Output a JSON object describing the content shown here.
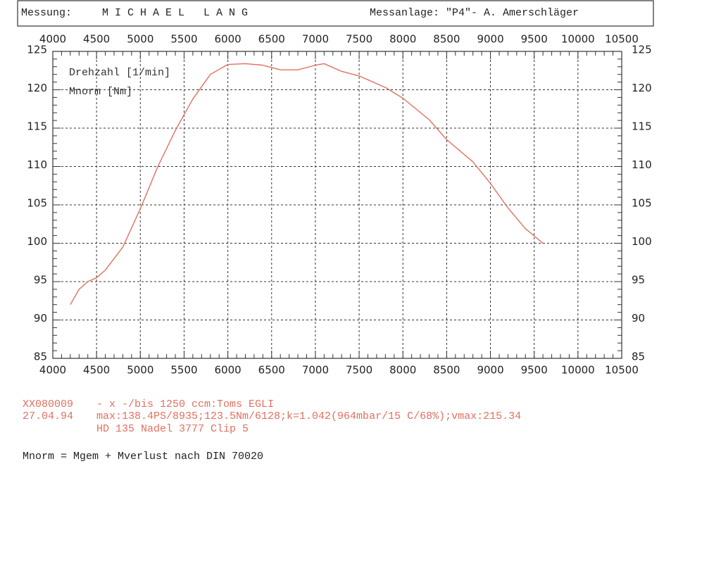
{
  "header": {
    "left_label": "Messung:",
    "name": "M I C H A E L   L A N G",
    "right_label": "Messanlage: \"P4\"- A. Amerschläger"
  },
  "chart_data": {
    "type": "line",
    "x_label": "Drehzahl [1/min]",
    "y_label": "Mnorm [Nm]",
    "x": [
      4200,
      4300,
      4400,
      4500,
      4600,
      4800,
      5000,
      5200,
      5400,
      5600,
      5800,
      6000,
      6200,
      6400,
      6600,
      6800,
      7000,
      7100,
      7300,
      7500,
      7800,
      8000,
      8300,
      8500,
      8800,
      9000,
      9200,
      9400,
      9600
    ],
    "values": [
      92,
      94,
      95,
      95.5,
      96.5,
      99.5,
      104.5,
      110,
      114.7,
      118.8,
      122,
      123.3,
      123.4,
      123.2,
      122.6,
      122.6,
      123.2,
      123.4,
      122.4,
      121.8,
      120.3,
      118.9,
      116.1,
      113.5,
      110.6,
      107.8,
      104.6,
      101.9,
      100
    ],
    "color": "#e07060",
    "xlim": [
      4000,
      10500
    ],
    "xticks": [
      4000,
      4500,
      5000,
      5500,
      6000,
      6500,
      7000,
      7500,
      8000,
      8500,
      9000,
      9500,
      10000,
      10500
    ],
    "ylim": [
      85,
      125
    ],
    "yticks": [
      85,
      90,
      95,
      100,
      105,
      110,
      115,
      120,
      125
    ],
    "grid": true
  },
  "notes": {
    "id": "XX080009",
    "description": "- x -/bis 1250 ccm:Toms EGLI",
    "date": "27.04.94",
    "summary": "max:138.4PS/8935;123.5Nm/6128;k=1.042(964mbar/15 C/68%);vmax:215.34",
    "setup": "HD 135 Nadel 3777 Clip 5",
    "formula": "Mnorm = Mgem + Mverlust nach DIN 70020"
  }
}
